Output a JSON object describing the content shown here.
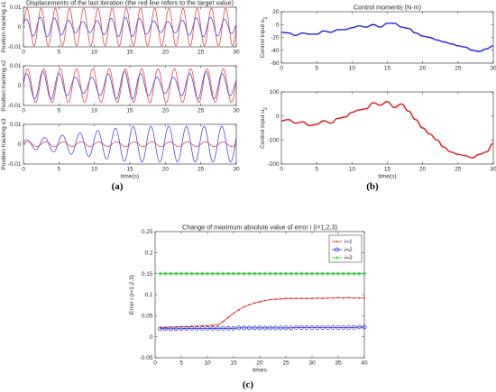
{
  "figure": {
    "captions": [
      "(a)",
      "(b)",
      "(c)"
    ]
  },
  "chart_data": [
    {
      "id": "a1",
      "type": "line",
      "title": "Displacements of the last iteration (the red line refers to the target value)",
      "xlabel": "",
      "ylabel": "Position tracking x1",
      "xlim": [
        0,
        30
      ],
      "ylim": [
        -0.01,
        0.01
      ],
      "xticks": [
        0,
        5,
        10,
        15,
        20,
        25,
        30
      ],
      "yticks": [
        -0.01,
        0,
        0.01
      ],
      "ytick_labels": [
        "-0.01",
        "0",
        "0.01"
      ],
      "series": [
        {
          "role": "target",
          "color": "#e8444a",
          "amplitude": 0.0095,
          "period": 2.0,
          "offset": 0
        },
        {
          "role": "actual",
          "color": "#4a4ad6",
          "amplitude": 0.0045,
          "period": 2.0,
          "offset": 0
        }
      ]
    },
    {
      "id": "a2",
      "type": "line",
      "title": "",
      "xlabel": "",
      "ylabel": "Position tracking x2",
      "xlim": [
        0,
        30
      ],
      "ylim": [
        -0.01,
        0.01
      ],
      "xticks": [
        0,
        5,
        10,
        15,
        20,
        25,
        30
      ],
      "yticks": [
        -0.01,
        0,
        0.01
      ],
      "ytick_labels": [
        "-0.01",
        "0",
        "0.01"
      ],
      "series": [
        {
          "role": "target",
          "color": "#e8444a",
          "amplitude": 0.0085,
          "period": 2.3,
          "offset": 0
        },
        {
          "role": "actual",
          "color": "#4a4ad6",
          "amplitude": 0.0065,
          "period": 2.3,
          "offset": 0
        }
      ]
    },
    {
      "id": "a3",
      "type": "line",
      "title": "",
      "xlabel": "time(s)",
      "ylabel": "Position tracking x3",
      "xlim": [
        0,
        30
      ],
      "ylim": [
        -0.01,
        0.01
      ],
      "xticks": [
        0,
        5,
        10,
        15,
        20,
        25,
        30
      ],
      "yticks": [
        -0.01,
        0,
        0.01
      ],
      "ytick_labels": [
        "-0.01",
        "0",
        "0.01"
      ],
      "series": [
        {
          "role": "target",
          "color": "#e8444a",
          "amplitude": 0.0012,
          "period": 2.5,
          "offset": 0
        },
        {
          "role": "actual",
          "color": "#4a4ad6",
          "amplitude_start": 0.002,
          "amplitude_end": 0.009,
          "period": 2.5,
          "offset": 0
        }
      ]
    },
    {
      "id": "b1",
      "type": "line",
      "title": "Control moments (N·m)",
      "xlabel": "",
      "ylabel": "Control input u",
      "ylabel_subscript": "1",
      "xlim": [
        0,
        30
      ],
      "ylim": [
        -60,
        20
      ],
      "xticks": [
        0,
        5,
        10,
        15,
        20,
        25,
        30
      ],
      "yticks": [
        -60,
        -40,
        -20,
        0,
        20
      ],
      "series": [
        {
          "color": "#1f1fe0",
          "x": [
            0,
            1,
            2,
            3,
            4,
            5,
            6,
            7,
            8,
            9,
            10,
            11,
            12,
            13,
            14,
            15,
            16,
            17,
            18,
            19,
            20,
            21,
            22,
            23,
            24,
            25,
            26,
            27,
            28,
            29,
            30
          ],
          "y": [
            -12,
            -13,
            -17,
            -13,
            -15,
            -15,
            -10,
            -12,
            -8,
            -8,
            -5,
            -2,
            -4,
            0,
            -4,
            2,
            2,
            -4,
            -6,
            -13,
            -18,
            -20,
            -24,
            -27,
            -30,
            -33,
            -35,
            -40,
            -42,
            -38,
            -33
          ]
        }
      ]
    },
    {
      "id": "b2",
      "type": "line",
      "title": "",
      "xlabel": "time(s)",
      "ylabel": "Control input u",
      "ylabel_subscript": "2",
      "xlim": [
        0,
        30
      ],
      "ylim": [
        -200,
        100
      ],
      "xticks": [
        0,
        5,
        10,
        15,
        20,
        25,
        30
      ],
      "yticks": [
        -200,
        -100,
        0,
        100
      ],
      "series": [
        {
          "color": "#e01818",
          "x": [
            0,
            1,
            2,
            3,
            4,
            5,
            6,
            7,
            8,
            9,
            10,
            11,
            12,
            13,
            14,
            15,
            16,
            17,
            18,
            19,
            20,
            21,
            22,
            23,
            24,
            25,
            26,
            27,
            28,
            29,
            30
          ],
          "y": [
            -20,
            -15,
            -30,
            -25,
            -40,
            -35,
            -20,
            -30,
            -10,
            -5,
            15,
            25,
            30,
            55,
            45,
            60,
            35,
            50,
            20,
            -15,
            -50,
            -75,
            -100,
            -130,
            -150,
            -160,
            -165,
            -175,
            -160,
            -150,
            -115
          ]
        }
      ]
    },
    {
      "id": "c",
      "type": "line",
      "title": "Change of maximum absolute value of error   i (i=1,2,3)",
      "xlabel": "times",
      "ylabel": "Error  i (i=1,2,3)",
      "xlim": [
        0,
        40
      ],
      "ylim": [
        -0.05,
        0.25
      ],
      "xticks": [
        0,
        5,
        10,
        15,
        20,
        25,
        30,
        35,
        40
      ],
      "yticks": [
        -0.05,
        0,
        0.05,
        0.1,
        0.15,
        0.2,
        0.25
      ],
      "legend_position": "top-right",
      "series": [
        {
          "name": "i=1",
          "color": "#e02020",
          "marker": "dot",
          "x": [
            1,
            2,
            3,
            4,
            5,
            6,
            7,
            8,
            9,
            10,
            11,
            12,
            13,
            14,
            15,
            16,
            17,
            18,
            19,
            20,
            21,
            22,
            23,
            24,
            25,
            26,
            27,
            28,
            29,
            30,
            31,
            32,
            33,
            34,
            35,
            36,
            37,
            38,
            39,
            40
          ],
          "y": [
            0.021,
            0.022,
            0.023,
            0.023,
            0.024,
            0.024,
            0.025,
            0.025,
            0.026,
            0.026,
            0.027,
            0.028,
            0.036,
            0.046,
            0.056,
            0.064,
            0.071,
            0.076,
            0.08,
            0.083,
            0.086,
            0.088,
            0.089,
            0.09,
            0.091,
            0.091,
            0.091,
            0.091,
            0.091,
            0.091,
            0.092,
            0.091,
            0.092,
            0.092,
            0.093,
            0.092,
            0.093,
            0.092,
            0.092,
            0.092
          ]
        },
        {
          "name": "i=2",
          "color": "#2a2ad8",
          "marker": "circle",
          "x": [
            1,
            2,
            3,
            4,
            5,
            6,
            7,
            8,
            9,
            10,
            11,
            12,
            13,
            14,
            15,
            16,
            17,
            18,
            19,
            20,
            21,
            22,
            23,
            24,
            25,
            26,
            27,
            28,
            29,
            30,
            31,
            32,
            33,
            34,
            35,
            36,
            37,
            38,
            39,
            40
          ],
          "y": [
            0.019,
            0.019,
            0.019,
            0.019,
            0.019,
            0.02,
            0.02,
            0.02,
            0.02,
            0.02,
            0.02,
            0.02,
            0.02,
            0.02,
            0.02,
            0.021,
            0.021,
            0.021,
            0.021,
            0.021,
            0.021,
            0.021,
            0.021,
            0.021,
            0.021,
            0.021,
            0.022,
            0.022,
            0.022,
            0.022,
            0.022,
            0.022,
            0.022,
            0.022,
            0.022,
            0.022,
            0.022,
            0.022,
            0.023,
            0.023
          ]
        },
        {
          "name": "i=3",
          "color": "#22c422",
          "marker": "star",
          "x": [
            1,
            2,
            3,
            4,
            5,
            6,
            7,
            8,
            9,
            10,
            11,
            12,
            13,
            14,
            15,
            16,
            17,
            18,
            19,
            20,
            21,
            22,
            23,
            24,
            25,
            26,
            27,
            28,
            29,
            30,
            31,
            32,
            33,
            34,
            35,
            36,
            37,
            38,
            39,
            40
          ],
          "y": [
            0.15,
            0.15,
            0.15,
            0.15,
            0.15,
            0.15,
            0.15,
            0.15,
            0.15,
            0.15,
            0.15,
            0.15,
            0.15,
            0.15,
            0.15,
            0.15,
            0.15,
            0.15,
            0.15,
            0.15,
            0.15,
            0.15,
            0.15,
            0.15,
            0.15,
            0.15,
            0.15,
            0.15,
            0.15,
            0.15,
            0.15,
            0.15,
            0.15,
            0.15,
            0.15,
            0.15,
            0.15,
            0.15,
            0.15,
            0.15
          ]
        }
      ]
    }
  ]
}
